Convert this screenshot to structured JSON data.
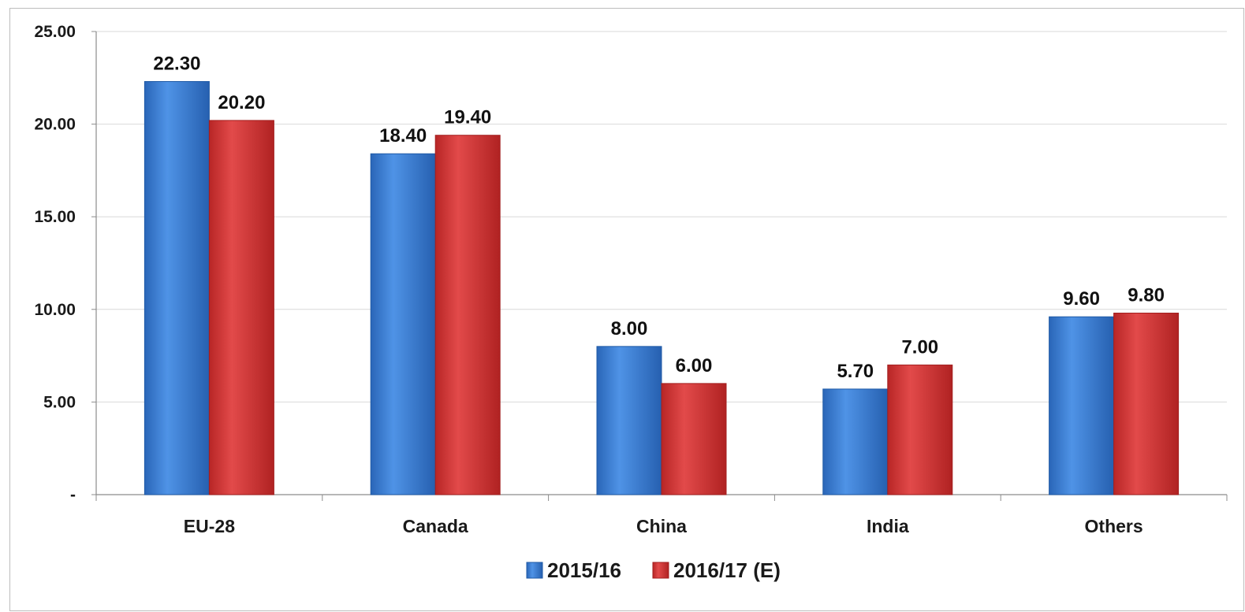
{
  "chart_data": {
    "type": "bar",
    "categories": [
      "EU-28",
      "Canada",
      "China",
      "India",
      "Others"
    ],
    "series": [
      {
        "name": "2015/16",
        "values": [
          22.3,
          18.4,
          8.0,
          5.7,
          9.6
        ],
        "value_labels": [
          "22.30",
          "18.40",
          "8.00",
          "5.70",
          "9.60"
        ],
        "color": "#3b7fd4"
      },
      {
        "name": "2016/17 (E)",
        "values": [
          20.2,
          19.4,
          6.0,
          7.0,
          9.8
        ],
        "value_labels": [
          "20.20",
          "19.40",
          "6.00",
          "7.00",
          "9.80"
        ],
        "color": "#d63b3b"
      }
    ],
    "ylim": [
      0,
      25
    ],
    "yticks": [
      0,
      5,
      10,
      15,
      20,
      25
    ],
    "ytick_labels": [
      "-",
      "5.00",
      "10.00",
      "15.00",
      "20.00",
      "25.00"
    ],
    "grid": true,
    "legend": "bottom-center",
    "title": "",
    "xlabel": "",
    "ylabel": ""
  }
}
